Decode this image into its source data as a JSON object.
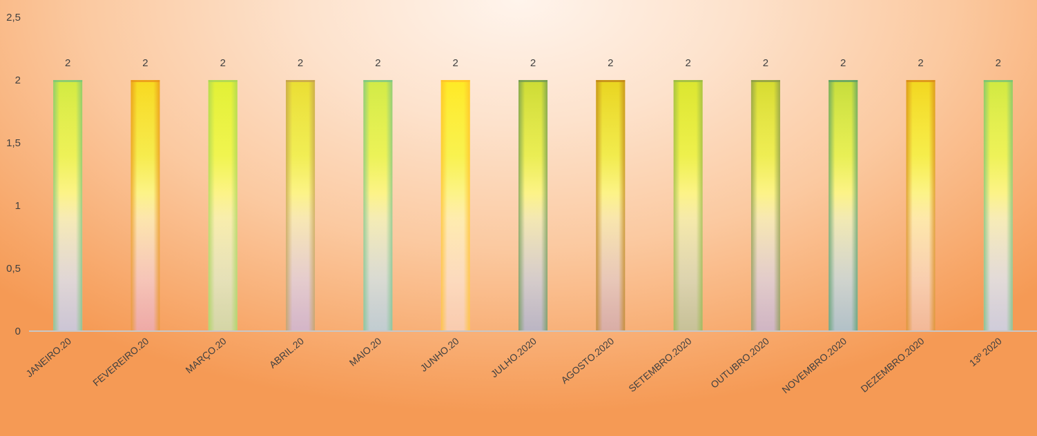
{
  "chart_data": {
    "type": "bar",
    "title": "",
    "xlabel": "",
    "ylabel": "",
    "ylim": [
      0,
      2.5
    ],
    "yticks": [
      "0",
      "0,5",
      "1",
      "1,5",
      "2",
      "2,5"
    ],
    "grid": false,
    "legend": "none",
    "categories": [
      "JANEIRO.20",
      "FEVEREIRO.20",
      "MARÇO.20",
      "ABRIL.20",
      "MAIO.20",
      "JUNHO.20",
      "JULHO.2020",
      "AGOSTO.2020",
      "SETEMBRO.2020",
      "OUTUBRO.2020",
      "NOVEMBRO.2020",
      "DEZEMBRO.2020",
      "13º 2020"
    ],
    "values": [
      2,
      2,
      2,
      2,
      2,
      2,
      2,
      2,
      2,
      2,
      2,
      2,
      2
    ],
    "data_labels": [
      "2",
      "2",
      "2",
      "2",
      "2",
      "2",
      "2",
      "2",
      "2",
      "2",
      "2",
      "2",
      "2"
    ],
    "bar_colors": [
      {
        "top": "#7cc47a",
        "bottom": "#a9b8e0"
      },
      {
        "top": "#e9941a",
        "bottom": "#e8858a"
      },
      {
        "top": "#a8d45a",
        "bottom": "#b9d68a"
      },
      {
        "top": "#c4a050",
        "bottom": "#b79ac8"
      },
      {
        "top": "#7cc48a",
        "bottom": "#95c4d8"
      },
      {
        "top": "#ffc02a",
        "bottom": "#fbc39a"
      },
      {
        "top": "#6f9a55",
        "bottom": "#8a9ac0"
      },
      {
        "top": "#c0851a",
        "bottom": "#c08b8a"
      },
      {
        "top": "#98b84a",
        "bottom": "#a0b070"
      },
      {
        "top": "#8a9a4a",
        "bottom": "#b09ac0"
      },
      {
        "top": "#5a9e6a",
        "bottom": "#7ab0c8"
      },
      {
        "top": "#d88a1a",
        "bottom": "#f0a070"
      },
      {
        "top": "#78c078",
        "bottom": "#b0c4e8"
      }
    ],
    "bar_highlight": "#ffff22",
    "bar_mid": "#fff0b0",
    "axis_color": "#c7c7c7"
  }
}
